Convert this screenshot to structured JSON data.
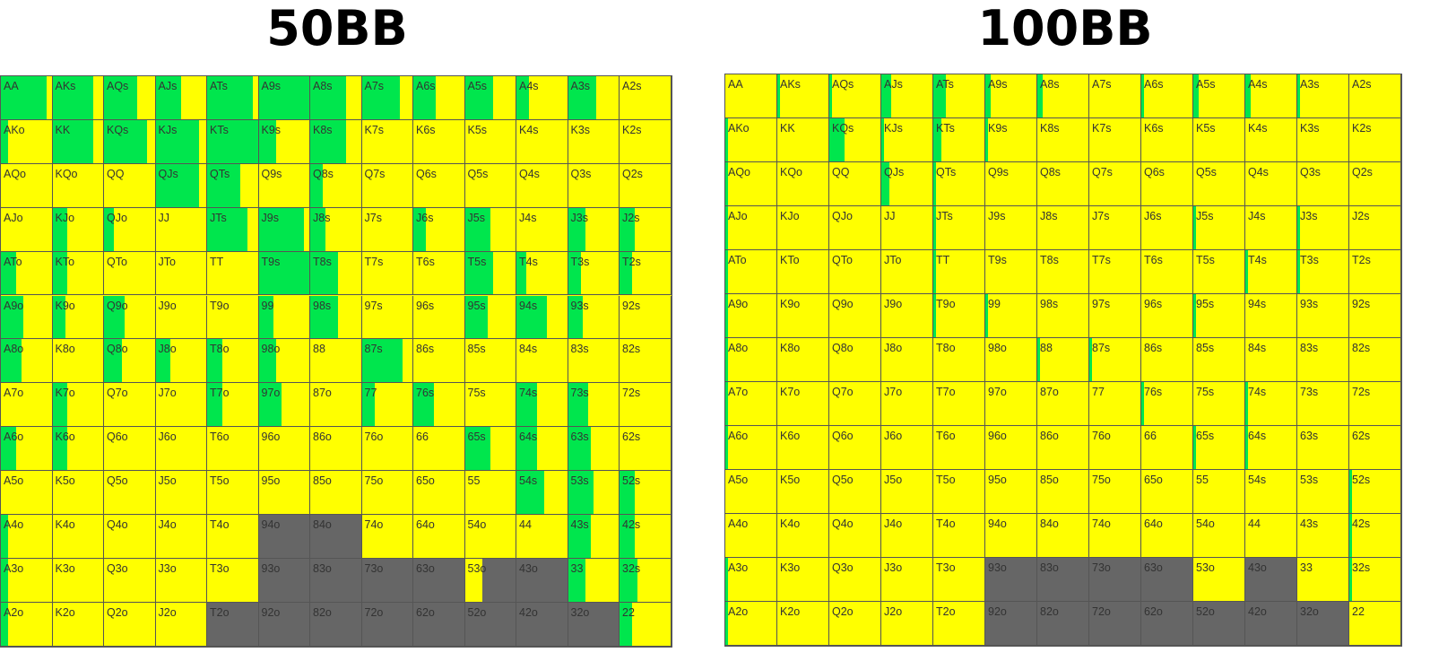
{
  "colors": {
    "fold": "#ffff00",
    "raise": "#00e64d",
    "unplayed": "#666666",
    "border": "#555555"
  },
  "chart_data": [
    {
      "type": "heatmap",
      "title": "50BB",
      "ranks": [
        "A",
        "K",
        "Q",
        "J",
        "T",
        "9",
        "8",
        "7",
        "6",
        "5",
        "4",
        "3",
        "2"
      ],
      "hands": [
        [
          "AA",
          "AKs",
          "AQs",
          "AJs",
          "ATs",
          "A9s",
          "A8s",
          "A7s",
          "A6s",
          "A5s",
          "A4s",
          "A3s",
          "A2s"
        ],
        [
          "AKo",
          "KK",
          "KQs",
          "KJs",
          "KTs",
          "K9s",
          "K8s",
          "K7s",
          "K6s",
          "K5s",
          "K4s",
          "K3s",
          "K2s"
        ],
        [
          "AQo",
          "KQo",
          "QQ",
          "QJs",
          "QTs",
          "Q9s",
          "Q8s",
          "Q7s",
          "Q6s",
          "Q5s",
          "Q4s",
          "Q3s",
          "Q2s"
        ],
        [
          "AJo",
          "KJo",
          "QJo",
          "JJ",
          "JTs",
          "J9s",
          "J8s",
          "J7s",
          "J6s",
          "J5s",
          "J4s",
          "J3s",
          "J2s"
        ],
        [
          "ATo",
          "KTo",
          "QTo",
          "JTo",
          "TT",
          "T9s",
          "T8s",
          "T7s",
          "T6s",
          "T5s",
          "T4s",
          "T3s",
          "T2s"
        ],
        [
          "A9o",
          "K9o",
          "Q9o",
          "J9o",
          "T9o",
          "99",
          "98s",
          "97s",
          "96s",
          "95s",
          "94s",
          "93s",
          "92s"
        ],
        [
          "A8o",
          "K8o",
          "Q8o",
          "J8o",
          "T8o",
          "98o",
          "88",
          "87s",
          "86s",
          "85s",
          "84s",
          "83s",
          "82s"
        ],
        [
          "A7o",
          "K7o",
          "Q7o",
          "J7o",
          "T7o",
          "97o",
          "87o",
          "77",
          "76s",
          "75s",
          "74s",
          "73s",
          "72s"
        ],
        [
          "A6o",
          "K6o",
          "Q6o",
          "J6o",
          "T6o",
          "96o",
          "86o",
          "76o",
          "66",
          "65s",
          "64s",
          "63s",
          "62s"
        ],
        [
          "A5o",
          "K5o",
          "Q5o",
          "J5o",
          "T5o",
          "95o",
          "85o",
          "75o",
          "65o",
          "55",
          "54s",
          "53s",
          "52s"
        ],
        [
          "A4o",
          "K4o",
          "Q4o",
          "J4o",
          "T4o",
          "94o",
          "84o",
          "74o",
          "64o",
          "54o",
          "44",
          "43s",
          "42s"
        ],
        [
          "A3o",
          "K3o",
          "Q3o",
          "J3o",
          "T3o",
          "93o",
          "83o",
          "73o",
          "63o",
          "53o",
          "43o",
          "33",
          "32s"
        ],
        [
          "A2o",
          "K2o",
          "Q2o",
          "J2o",
          "T2o",
          "92o",
          "82o",
          "72o",
          "62o",
          "52o",
          "42o",
          "32o",
          "22"
        ]
      ],
      "green_fraction": [
        [
          0.9,
          0.8,
          0.65,
          0.5,
          0.9,
          1.0,
          0.7,
          0.75,
          0.45,
          0.55,
          0.25,
          0.55,
          0.0
        ],
        [
          0.15,
          0.8,
          0.85,
          0.85,
          1.0,
          0.35,
          0.7,
          0.0,
          0.0,
          0.0,
          0.0,
          0.0,
          0.0
        ],
        [
          0.0,
          0.0,
          0.0,
          0.85,
          0.65,
          0.0,
          0.25,
          0.0,
          0.0,
          0.0,
          0.0,
          0.0,
          0.0
        ],
        [
          0.0,
          0.3,
          0.2,
          0.0,
          0.8,
          0.9,
          0.3,
          0.0,
          0.25,
          0.5,
          0.0,
          0.35,
          0.3
        ],
        [
          0.3,
          0.3,
          0.0,
          0.0,
          0.0,
          1.0,
          0.55,
          0.0,
          0.0,
          0.55,
          0.2,
          0.25,
          0.25
        ],
        [
          0.45,
          0.25,
          0.4,
          0.0,
          0.0,
          0.3,
          0.55,
          0.0,
          0.0,
          0.45,
          0.6,
          0.3,
          0.0
        ],
        [
          0.4,
          0.0,
          0.35,
          0.3,
          0.3,
          0.35,
          0.0,
          0.8,
          0.0,
          0.0,
          0.0,
          0.0,
          0.0
        ],
        [
          0.0,
          0.3,
          0.0,
          0.0,
          0.3,
          0.45,
          0.0,
          0.25,
          0.4,
          0.0,
          0.4,
          0.4,
          0.0
        ],
        [
          0.3,
          0.3,
          0.0,
          0.0,
          0.0,
          0.0,
          0.0,
          0.0,
          0.0,
          0.5,
          0.4,
          0.45,
          0.0
        ],
        [
          0.0,
          0.0,
          0.0,
          0.0,
          0.0,
          0.0,
          0.0,
          0.0,
          0.0,
          0.0,
          0.55,
          0.5,
          0.3
        ],
        [
          0.15,
          0.0,
          0.0,
          0.0,
          0.0,
          0.0,
          0.0,
          0.0,
          0.0,
          0.0,
          0.0,
          0.45,
          0.3
        ],
        [
          0.15,
          0.0,
          0.0,
          0.0,
          0.0,
          0.0,
          0.0,
          0.0,
          0.0,
          0.0,
          0.0,
          0.35,
          0.35
        ],
        [
          0.15,
          0.0,
          0.0,
          0.0,
          0.0,
          0.0,
          0.0,
          0.0,
          0.0,
          0.0,
          0.0,
          0.0,
          0.25
        ]
      ],
      "unplayed": [
        [
          10,
          5
        ],
        [
          10,
          6
        ],
        [
          11,
          5
        ],
        [
          11,
          6
        ],
        [
          11,
          7
        ],
        [
          11,
          8
        ],
        [
          11,
          10
        ],
        [
          12,
          4
        ],
        [
          12,
          5
        ],
        [
          12,
          6
        ],
        [
          12,
          7
        ],
        [
          12,
          8
        ],
        [
          12,
          9
        ],
        [
          12,
          10
        ],
        [
          12,
          11
        ]
      ],
      "partial_unplayed": [
        [
          11,
          9,
          0.35
        ]
      ]
    },
    {
      "type": "heatmap",
      "title": "100BB",
      "ranks": [
        "A",
        "K",
        "Q",
        "J",
        "T",
        "9",
        "8",
        "7",
        "6",
        "5",
        "4",
        "3",
        "2"
      ],
      "hands": [
        [
          "AA",
          "AKs",
          "AQs",
          "AJs",
          "ATs",
          "A9s",
          "A8s",
          "A7s",
          "A6s",
          "A5s",
          "A4s",
          "A3s",
          "A2s"
        ],
        [
          "AKo",
          "KK",
          "KQs",
          "KJs",
          "KTs",
          "K9s",
          "K8s",
          "K7s",
          "K6s",
          "K5s",
          "K4s",
          "K3s",
          "K2s"
        ],
        [
          "AQo",
          "KQo",
          "QQ",
          "QJs",
          "QTs",
          "Q9s",
          "Q8s",
          "Q7s",
          "Q6s",
          "Q5s",
          "Q4s",
          "Q3s",
          "Q2s"
        ],
        [
          "AJo",
          "KJo",
          "QJo",
          "JJ",
          "JTs",
          "J9s",
          "J8s",
          "J7s",
          "J6s",
          "J5s",
          "J4s",
          "J3s",
          "J2s"
        ],
        [
          "ATo",
          "KTo",
          "QTo",
          "JTo",
          "TT",
          "T9s",
          "T8s",
          "T7s",
          "T6s",
          "T5s",
          "T4s",
          "T3s",
          "T2s"
        ],
        [
          "A9o",
          "K9o",
          "Q9o",
          "J9o",
          "T9o",
          "99",
          "98s",
          "97s",
          "96s",
          "95s",
          "94s",
          "93s",
          "92s"
        ],
        [
          "A8o",
          "K8o",
          "Q8o",
          "J8o",
          "T8o",
          "98o",
          "88",
          "87s",
          "86s",
          "85s",
          "84s",
          "83s",
          "82s"
        ],
        [
          "A7o",
          "K7o",
          "Q7o",
          "J7o",
          "T7o",
          "97o",
          "87o",
          "77",
          "76s",
          "75s",
          "74s",
          "73s",
          "72s"
        ],
        [
          "A6o",
          "K6o",
          "Q6o",
          "J6o",
          "T6o",
          "96o",
          "86o",
          "76o",
          "66",
          "65s",
          "64s",
          "63s",
          "62s"
        ],
        [
          "A5o",
          "K5o",
          "Q5o",
          "J5o",
          "T5o",
          "95o",
          "85o",
          "75o",
          "65o",
          "55",
          "54s",
          "53s",
          "52s"
        ],
        [
          "A4o",
          "K4o",
          "Q4o",
          "J4o",
          "T4o",
          "94o",
          "84o",
          "74o",
          "64o",
          "54o",
          "44",
          "43s",
          "42s"
        ],
        [
          "A3o",
          "K3o",
          "Q3o",
          "J3o",
          "T3o",
          "93o",
          "83o",
          "73o",
          "63o",
          "53o",
          "43o",
          "33",
          "32s"
        ],
        [
          "A2o",
          "K2o",
          "Q2o",
          "J2o",
          "T2o",
          "92o",
          "82o",
          "72o",
          "62o",
          "52o",
          "42o",
          "32o",
          "22"
        ]
      ],
      "green_fraction": [
        [
          0.0,
          0.05,
          0.05,
          0.2,
          0.25,
          0.1,
          0.1,
          0.0,
          0.05,
          0.1,
          0.1,
          0.05,
          0.0
        ],
        [
          0.05,
          0.0,
          0.3,
          0.05,
          0.15,
          0.05,
          0.0,
          0.0,
          0.0,
          0.0,
          0.0,
          0.0,
          0.0
        ],
        [
          0.05,
          0.0,
          0.0,
          0.15,
          0.05,
          0.0,
          0.0,
          0.0,
          0.0,
          0.0,
          0.0,
          0.0,
          0.0
        ],
        [
          0.05,
          0.0,
          0.0,
          0.0,
          0.05,
          0.0,
          0.0,
          0.0,
          0.0,
          0.05,
          0.0,
          0.05,
          0.0
        ],
        [
          0.05,
          0.0,
          0.0,
          0.0,
          0.05,
          0.0,
          0.0,
          0.0,
          0.0,
          0.0,
          0.05,
          0.05,
          0.0
        ],
        [
          0.05,
          0.0,
          0.0,
          0.0,
          0.05,
          0.05,
          0.0,
          0.0,
          0.0,
          0.05,
          0.0,
          0.0,
          0.0
        ],
        [
          0.05,
          0.0,
          0.0,
          0.0,
          0.0,
          0.0,
          0.05,
          0.05,
          0.0,
          0.0,
          0.0,
          0.0,
          0.0
        ],
        [
          0.05,
          0.0,
          0.0,
          0.0,
          0.0,
          0.0,
          0.0,
          0.0,
          0.05,
          0.0,
          0.05,
          0.0,
          0.0
        ],
        [
          0.05,
          0.0,
          0.0,
          0.0,
          0.0,
          0.0,
          0.0,
          0.0,
          0.0,
          0.05,
          0.05,
          0.0,
          0.0
        ],
        [
          0.0,
          0.0,
          0.0,
          0.0,
          0.0,
          0.0,
          0.0,
          0.0,
          0.0,
          0.0,
          0.0,
          0.0,
          0.05
        ],
        [
          0.0,
          0.0,
          0.0,
          0.0,
          0.0,
          0.0,
          0.0,
          0.0,
          0.0,
          0.0,
          0.0,
          0.0,
          0.05
        ],
        [
          0.05,
          0.0,
          0.0,
          0.0,
          0.0,
          0.0,
          0.0,
          0.0,
          0.0,
          0.0,
          0.0,
          0.0,
          0.05
        ],
        [
          0.05,
          0.0,
          0.0,
          0.0,
          0.0,
          0.0,
          0.0,
          0.0,
          0.0,
          0.0,
          0.0,
          0.0,
          0.0
        ]
      ],
      "unplayed": [
        [
          11,
          5
        ],
        [
          11,
          6
        ],
        [
          11,
          7
        ],
        [
          11,
          8
        ],
        [
          11,
          10
        ],
        [
          12,
          5
        ],
        [
          12,
          6
        ],
        [
          12,
          7
        ],
        [
          12,
          8
        ],
        [
          12,
          9
        ],
        [
          12,
          10
        ],
        [
          12,
          11
        ]
      ],
      "partial_unplayed": []
    }
  ]
}
